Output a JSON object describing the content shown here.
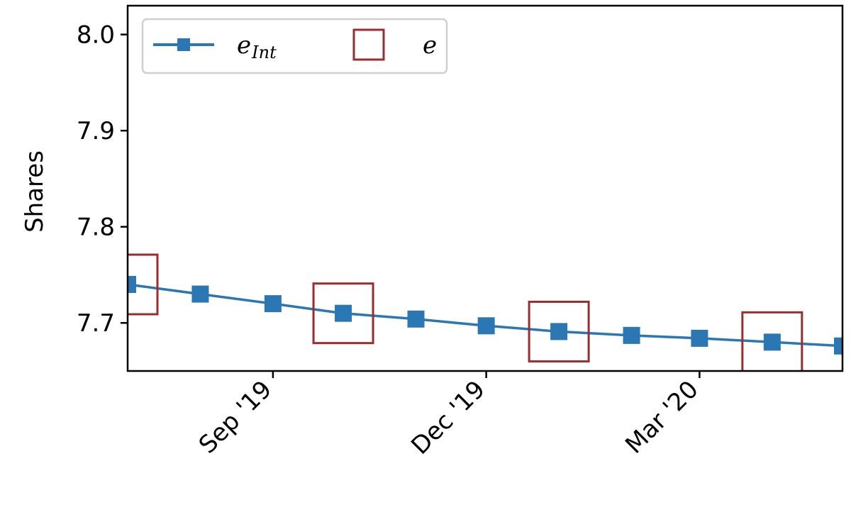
{
  "colors": {
    "interpolated": "#2a77b4",
    "actual": "#9a2e2e",
    "axis": "#000000"
  },
  "chart_data": {
    "type": "line",
    "title": "",
    "xlabel": "",
    "ylabel": "Shares",
    "ylim": [
      7.65,
      8.03
    ],
    "yticks": [
      "7.7",
      "7.8",
      "7.9",
      "8.0"
    ],
    "xlim": [
      "2019-07-01",
      "2020-05-01"
    ],
    "xticks": [
      {
        "label": "Sep '19",
        "date": "2019-09-01"
      },
      {
        "label": "Dec '19",
        "date": "2019-12-01"
      },
      {
        "label": "Mar '20",
        "date": "2020-03-01"
      }
    ],
    "grid": false,
    "legend_position": "top-left",
    "series": [
      {
        "name": "e_Int",
        "legend_main": "e",
        "legend_sub": "Int",
        "marker": "filled-square",
        "line": true,
        "x": [
          "2019-07-01",
          "2019-08-01",
          "2019-09-01",
          "2019-10-01",
          "2019-11-01",
          "2019-12-01",
          "2020-01-01",
          "2020-02-01",
          "2020-03-01",
          "2020-04-01",
          "2020-05-01"
        ],
        "y": [
          7.74,
          7.73,
          7.72,
          7.71,
          7.704,
          7.697,
          7.691,
          7.687,
          7.684,
          7.68,
          7.676
        ]
      },
      {
        "name": "e",
        "legend_main": "e",
        "legend_sub": "",
        "marker": "hollow-square",
        "line": false,
        "x": [
          "2019-07-01",
          "2019-10-01",
          "2020-01-01",
          "2020-04-01"
        ],
        "y": [
          7.74,
          7.71,
          7.691,
          7.68
        ]
      }
    ]
  }
}
